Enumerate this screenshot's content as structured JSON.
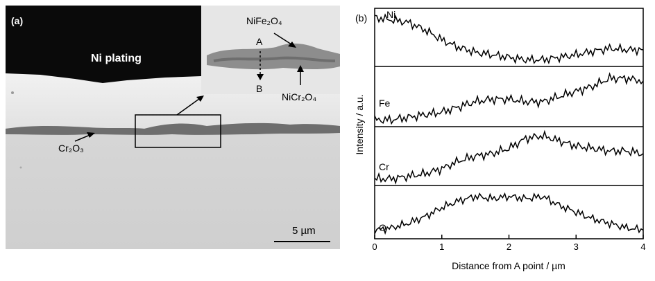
{
  "panel_a": {
    "label": "(a)",
    "ni_plating": "Ni plating",
    "nife": "NiFe₂O₄",
    "nicr": "NiCr₂O₄",
    "cr2o3": "Cr₂O₃",
    "point_a": "A",
    "point_b": "B",
    "scale": "5 µm"
  },
  "panel_b": {
    "label": "(b)",
    "ylabel": "Intensity / a.u.",
    "xlabel": "Distance from A point / µm",
    "xticks": [
      "0",
      "1",
      "2",
      "3",
      "4"
    ],
    "series_labels": [
      "Ni",
      "Fe",
      "Cr",
      "O"
    ]
  },
  "chart_data": {
    "type": "line",
    "xlabel": "Distance from A point / µm",
    "ylabel": "Intensity / a.u.",
    "xlim": [
      0,
      4
    ],
    "x": [
      0,
      0.25,
      0.5,
      0.75,
      1.0,
      1.25,
      1.5,
      1.75,
      2.0,
      2.25,
      2.5,
      2.75,
      3.0,
      3.25,
      3.5,
      3.75,
      4.0
    ],
    "series": [
      {
        "name": "Ni",
        "values": [
          0.9,
          0.85,
          0.8,
          0.65,
          0.45,
          0.3,
          0.2,
          0.15,
          0.1,
          0.05,
          0.05,
          0.1,
          0.15,
          0.22,
          0.28,
          0.25,
          0.25
        ]
      },
      {
        "name": "Fe",
        "values": [
          0.05,
          0.05,
          0.1,
          0.15,
          0.2,
          0.3,
          0.4,
          0.45,
          0.45,
          0.4,
          0.4,
          0.5,
          0.6,
          0.7,
          0.85,
          0.85,
          0.8
        ]
      },
      {
        "name": "Cr",
        "values": [
          0.05,
          0.05,
          0.1,
          0.15,
          0.25,
          0.4,
          0.5,
          0.55,
          0.65,
          0.85,
          0.9,
          0.8,
          0.7,
          0.65,
          0.6,
          0.6,
          0.55
        ]
      },
      {
        "name": "O",
        "values": [
          0.1,
          0.15,
          0.25,
          0.4,
          0.6,
          0.75,
          0.85,
          0.8,
          0.85,
          0.8,
          0.85,
          0.65,
          0.5,
          0.35,
          0.25,
          0.15,
          0.1
        ]
      }
    ]
  }
}
